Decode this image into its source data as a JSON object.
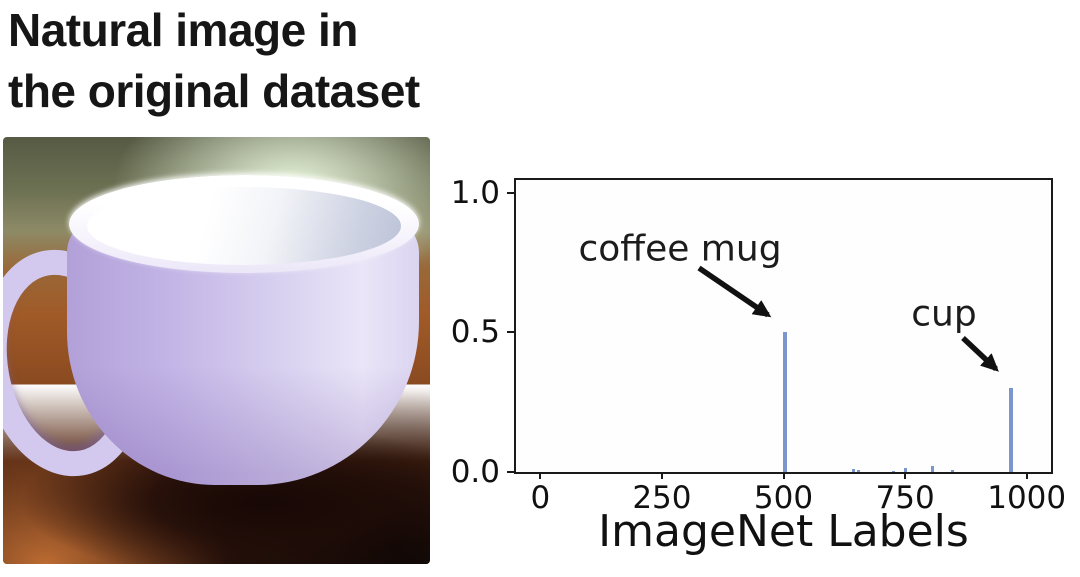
{
  "left_panel": {
    "title_lines": [
      "Natural image in",
      "the original dataset"
    ],
    "photo": {
      "subject": "white cup on a wooden table"
    }
  },
  "chart_data": {
    "type": "bar",
    "title": "",
    "xlabel": "ImageNet Labels",
    "ylabel": "",
    "xlim": [
      -50,
      1050
    ],
    "ylim": [
      0,
      1.045
    ],
    "grid": false,
    "legend": "none",
    "bar_color": "#7b95cd",
    "axis_color": "#1a1a1a",
    "text_color": "#111111",
    "xticks": [
      {
        "value": 0,
        "label": "0"
      },
      {
        "value": 250,
        "label": "250"
      },
      {
        "value": 500,
        "label": "500"
      },
      {
        "value": 750,
        "label": "750"
      },
      {
        "value": 1000,
        "label": "1000"
      }
    ],
    "yticks": [
      {
        "value": 0.0,
        "label": "0.0"
      },
      {
        "value": 0.5,
        "label": "0.5"
      },
      {
        "value": 1.0,
        "label": "1.0"
      }
    ],
    "bars": [
      {
        "x": 504,
        "value": 0.5,
        "label": "coffee mug"
      },
      {
        "x": 968,
        "value": 0.3,
        "label": "cup"
      },
      {
        "x": 643,
        "value": 0.012
      },
      {
        "x": 654,
        "value": 0.007
      },
      {
        "x": 727,
        "value": 0.005
      },
      {
        "x": 750,
        "value": 0.014
      },
      {
        "x": 806,
        "value": 0.022
      },
      {
        "x": 848,
        "value": 0.007
      }
    ],
    "annotations": [
      {
        "text": "coffee mug",
        "target_x": 504,
        "target_value": 0.5
      },
      {
        "text": "cup",
        "target_x": 968,
        "target_value": 0.3
      }
    ]
  }
}
